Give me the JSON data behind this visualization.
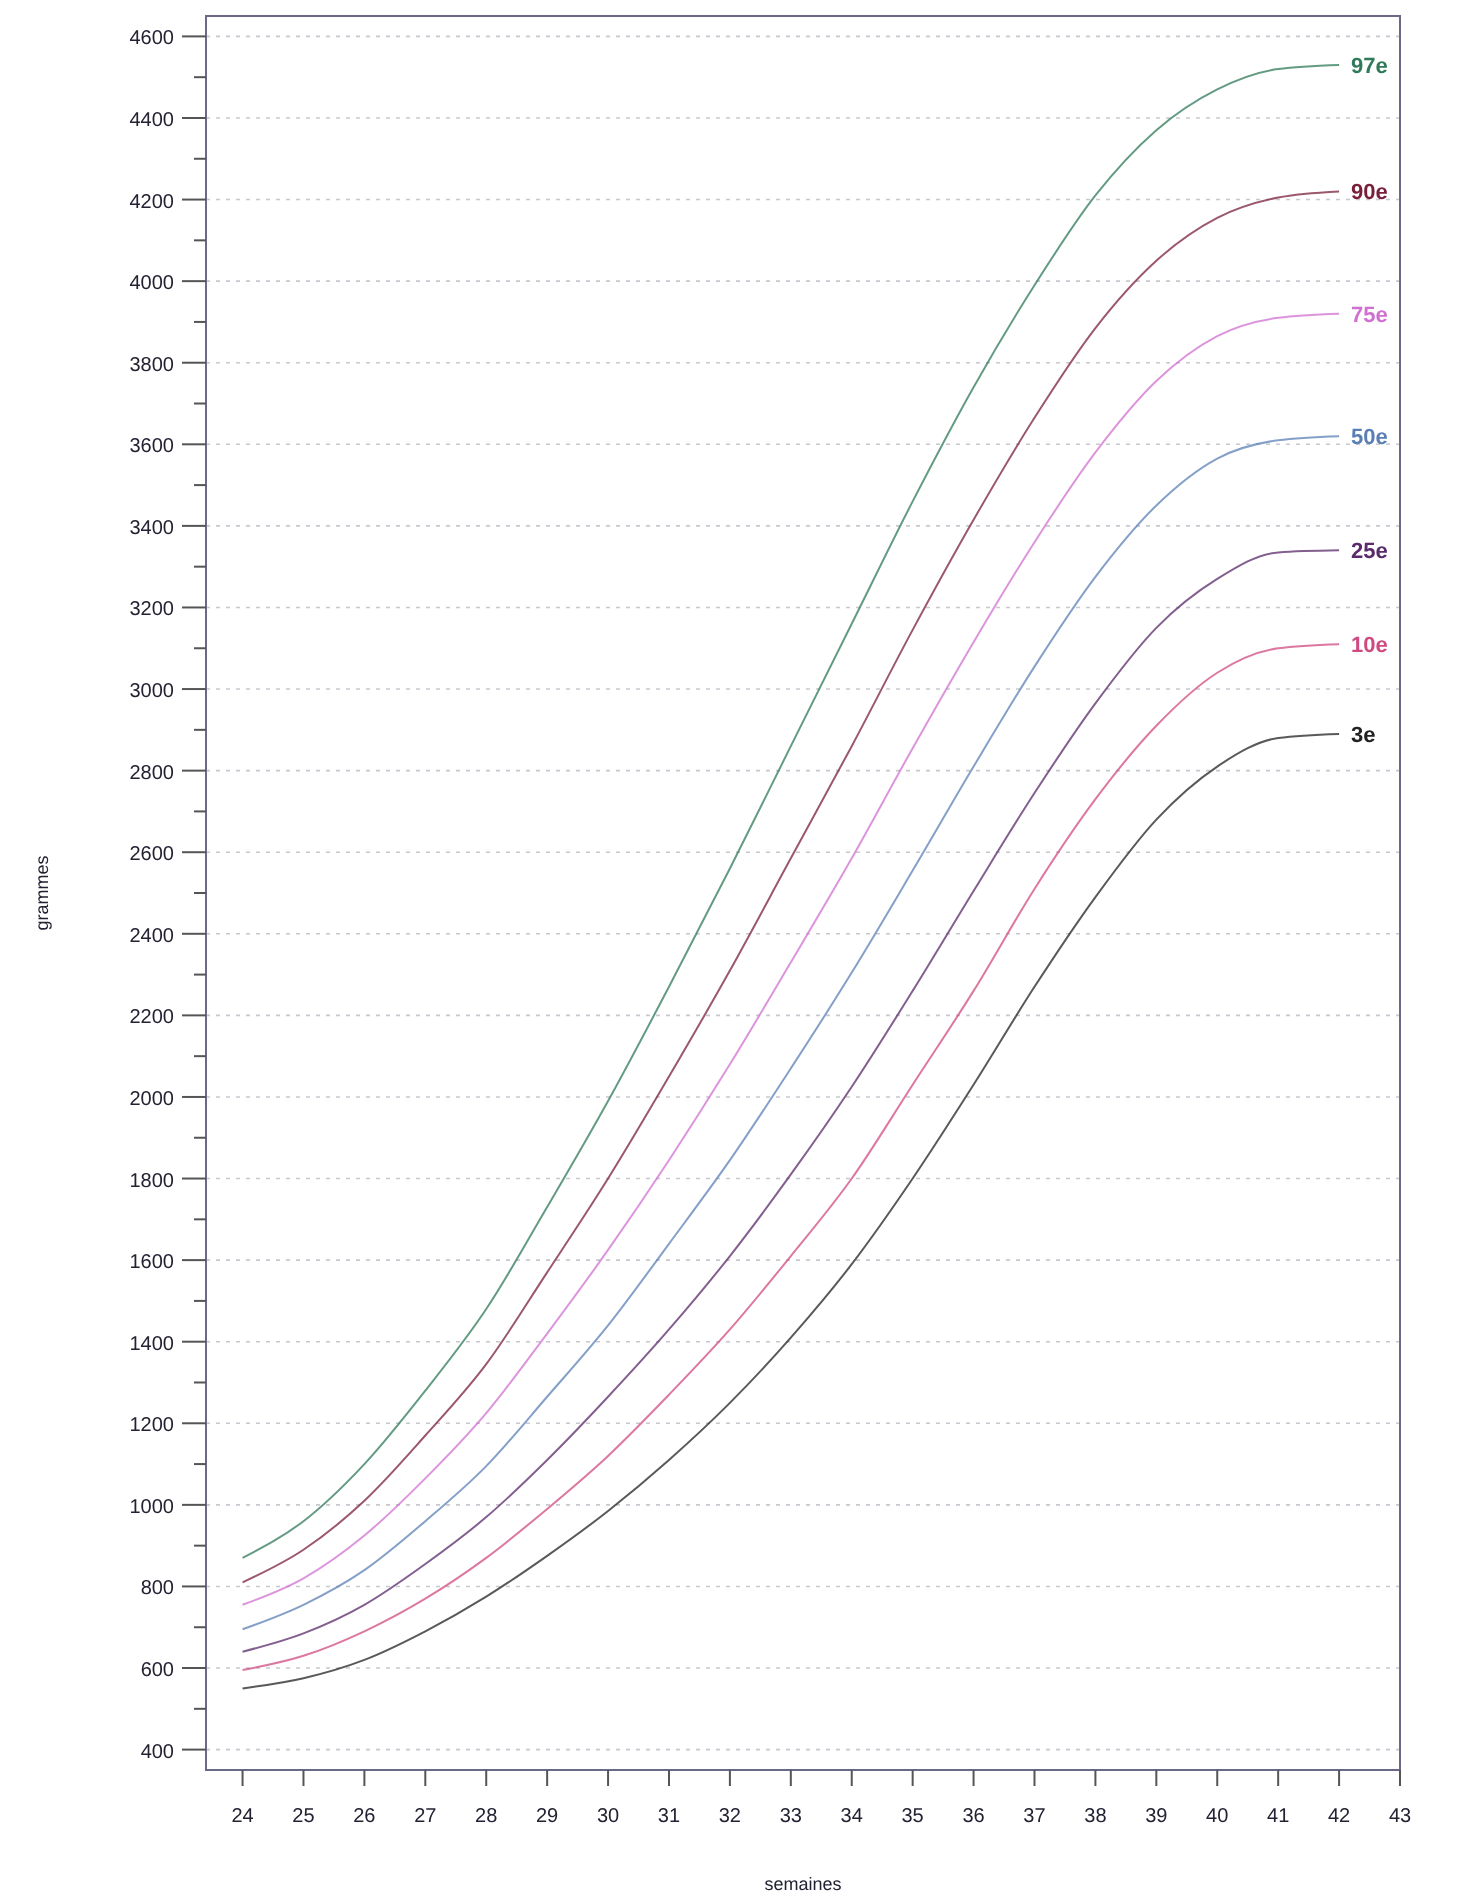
{
  "chart_data": {
    "type": "line",
    "xlabel": "semaines",
    "ylabel": "grammes",
    "x": [
      24,
      25,
      26,
      27,
      28,
      29,
      30,
      31,
      32,
      33,
      34,
      35,
      36,
      37,
      38,
      39,
      40,
      41,
      42
    ],
    "xlim": [
      23.4,
      43
    ],
    "xticks": [
      24,
      25,
      26,
      27,
      28,
      29,
      30,
      31,
      32,
      33,
      34,
      35,
      36,
      37,
      38,
      39,
      40,
      41,
      42,
      43
    ],
    "ylim": [
      350,
      4650
    ],
    "yticks": [
      400,
      {
        "value": 500,
        "label": null
      },
      600,
      {
        "value": 700,
        "label": null
      },
      800,
      {
        "value": 900,
        "label": null
      },
      1000,
      {
        "value": 1100,
        "label": null
      },
      1200,
      {
        "value": 1300,
        "label": null
      },
      1400,
      {
        "value": 1500,
        "label": null
      },
      1600,
      {
        "value": 1700,
        "label": null
      },
      1800,
      {
        "value": 1900,
        "label": null
      },
      2000,
      {
        "value": 2100,
        "label": null
      },
      2200,
      {
        "value": 2300,
        "label": null
      },
      2400,
      {
        "value": 2500,
        "label": null
      },
      2600,
      {
        "value": 2700,
        "label": null
      },
      2800,
      {
        "value": 2900,
        "label": null
      },
      3000,
      {
        "value": 3100,
        "label": null
      },
      3200,
      {
        "value": 3300,
        "label": null
      },
      3400,
      {
        "value": 3500,
        "label": null
      },
      3600,
      {
        "value": 3700,
        "label": null
      },
      3800,
      {
        "value": 3900,
        "label": null
      },
      4000,
      {
        "value": 4100,
        "label": null
      },
      4200,
      {
        "value": 4300,
        "label": null
      },
      4400,
      {
        "value": 4500,
        "label": null
      },
      4600
    ],
    "grid": "y",
    "marker": "none",
    "line_style": "solid",
    "series": [
      {
        "name": "97e",
        "color": "#2f7a58",
        "values": [
          870,
          960,
          1100,
          1280,
          1480,
          1730,
          1990,
          2270,
          2560,
          2860,
          3160,
          3460,
          3740,
          3990,
          4210,
          4370,
          4470,
          4520,
          4530
        ]
      },
      {
        "name": "90e",
        "color": "#7a1f3a",
        "values": [
          810,
          890,
          1010,
          1170,
          1345,
          1570,
          1800,
          2050,
          2310,
          2585,
          2860,
          3145,
          3415,
          3665,
          3885,
          4050,
          4155,
          4205,
          4220
        ]
      },
      {
        "name": "75e",
        "color": "#d070d0",
        "values": [
          755,
          820,
          925,
          1065,
          1225,
          1420,
          1625,
          1845,
          2080,
          2330,
          2585,
          2855,
          3115,
          3360,
          3580,
          3755,
          3865,
          3910,
          3920
        ]
      },
      {
        "name": "50e",
        "color": "#5b7fb5",
        "values": [
          695,
          755,
          840,
          960,
          1095,
          1265,
          1440,
          1640,
          1845,
          2070,
          2305,
          2555,
          2810,
          3055,
          3275,
          3450,
          3565,
          3610,
          3620
        ]
      },
      {
        "name": "25e",
        "color": "#5a2a6a",
        "values": [
          640,
          685,
          755,
          855,
          970,
          1110,
          1265,
          1430,
          1610,
          1810,
          2025,
          2260,
          2505,
          2745,
          2965,
          3150,
          3270,
          3335,
          3340
        ]
      },
      {
        "name": "10e",
        "color": "#d04a80",
        "values": [
          595,
          630,
          690,
          770,
          870,
          990,
          1120,
          1270,
          1430,
          1610,
          1800,
          2030,
          2260,
          2510,
          2730,
          2910,
          3040,
          3100,
          3110
        ]
      },
      {
        "name": "3e",
        "color": "#222222",
        "values": [
          550,
          575,
          620,
          690,
          775,
          875,
          985,
          1110,
          1250,
          1410,
          1590,
          1800,
          2030,
          2270,
          2490,
          2680,
          2810,
          2880,
          2890
        ]
      }
    ]
  }
}
